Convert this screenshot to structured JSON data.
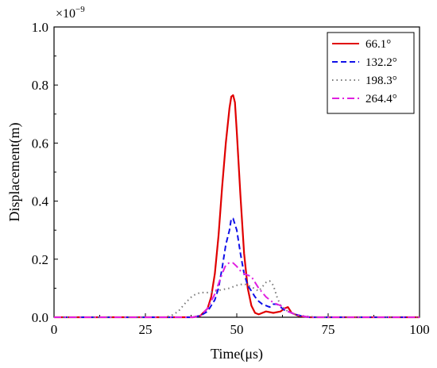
{
  "chart_data": {
    "type": "line",
    "title": "",
    "xlabel": "Time(μs)",
    "ylabel": "Displacement(m)",
    "y_multiplier": "×10",
    "y_exponent": "−9",
    "xlim": [
      0,
      100
    ],
    "ylim": [
      0,
      1.0
    ],
    "xticks": [
      0,
      25,
      50,
      75,
      100
    ],
    "yticks": [
      0.0,
      0.2,
      0.4,
      0.6,
      0.8,
      1.0
    ],
    "xtick_labels": [
      "0",
      "25",
      "50",
      "75",
      "100"
    ],
    "ytick_labels": [
      "0.0",
      "0.2",
      "0.4",
      "0.6",
      "0.8",
      "1.0"
    ],
    "grid": false,
    "legend_position": "top-right",
    "series": [
      {
        "name": "66.1°",
        "color": "#e00000",
        "style": "solid",
        "x": [
          0,
          38,
          40,
          42,
          43,
          44,
          45,
          46,
          47,
          48,
          48.5,
          49,
          49.5,
          50,
          51,
          52,
          53,
          54,
          55,
          56,
          57,
          58,
          60,
          62,
          63,
          64,
          65,
          67,
          70,
          100
        ],
        "y": [
          0,
          0,
          0.005,
          0.03,
          0.07,
          0.15,
          0.28,
          0.45,
          0.6,
          0.72,
          0.76,
          0.765,
          0.74,
          0.64,
          0.42,
          0.22,
          0.1,
          0.04,
          0.015,
          0.01,
          0.015,
          0.02,
          0.015,
          0.02,
          0.03,
          0.035,
          0.015,
          0.004,
          0,
          0
        ]
      },
      {
        "name": "132.2°",
        "color": "#1010e8",
        "style": "dashed",
        "x": [
          0,
          38,
          40,
          42,
          44,
          45,
          46,
          47,
          48,
          48.5,
          49,
          50,
          51,
          52,
          53,
          54,
          55,
          56,
          57,
          58,
          59,
          60,
          61,
          62,
          63,
          64,
          65,
          66,
          68,
          70,
          100
        ],
        "y": [
          0,
          0,
          0.005,
          0.02,
          0.06,
          0.1,
          0.17,
          0.25,
          0.3,
          0.34,
          0.34,
          0.3,
          0.22,
          0.15,
          0.11,
          0.09,
          0.07,
          0.055,
          0.045,
          0.04,
          0.035,
          0.045,
          0.045,
          0.035,
          0.025,
          0.02,
          0.015,
          0.01,
          0.003,
          0,
          0
        ]
      },
      {
        "name": "198.3°",
        "color": "#777777",
        "style": "dotted",
        "x": [
          0,
          30,
          32,
          34,
          36,
          38,
          40,
          42,
          44,
          46,
          48,
          50,
          52,
          54,
          56,
          58,
          59,
          60,
          61,
          62,
          64,
          66,
          68,
          70,
          72,
          100
        ],
        "y": [
          0,
          0,
          0.005,
          0.02,
          0.05,
          0.075,
          0.085,
          0.085,
          0.09,
          0.095,
          0.1,
          0.11,
          0.115,
          0.105,
          0.09,
          0.12,
          0.125,
          0.11,
          0.07,
          0.04,
          0.02,
          0.01,
          0.005,
          0.002,
          0,
          0
        ]
      },
      {
        "name": "264.4°",
        "color": "#e020e0",
        "style": "dashdot",
        "x": [
          0,
          38,
          40,
          42,
          44,
          46,
          47,
          48,
          49,
          50,
          51,
          52,
          53,
          54,
          55,
          56,
          57,
          58,
          60,
          62,
          64,
          66,
          68,
          70,
          100
        ],
        "y": [
          0,
          0,
          0.005,
          0.03,
          0.08,
          0.15,
          0.18,
          0.188,
          0.187,
          0.175,
          0.16,
          0.15,
          0.145,
          0.14,
          0.12,
          0.1,
          0.085,
          0.07,
          0.05,
          0.04,
          0.02,
          0.01,
          0.004,
          0,
          0
        ]
      }
    ]
  }
}
